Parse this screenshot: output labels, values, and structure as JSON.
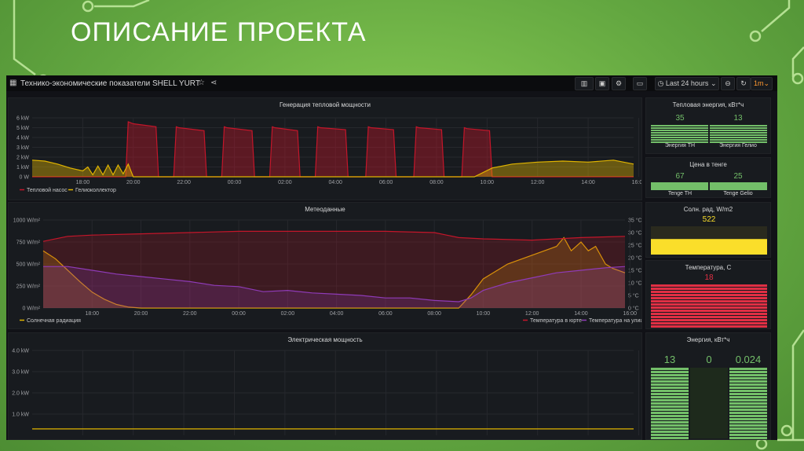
{
  "slide": {
    "title": "ОПИСАНИЕ ПРОЕКТА"
  },
  "dashboard": {
    "title": "Технико-экономические показатели SHELL YURT",
    "time_range": "Last 24 hours",
    "refresh": "1m"
  },
  "panels": {
    "heat_energy": {
      "title": "Тепловая энергия, кВт*ч",
      "values": [
        "35",
        "13"
      ],
      "labels": [
        "Энергия ТН",
        "Энергия Гелио"
      ],
      "color": "#73bf69"
    },
    "price": {
      "title": "Цена в тенге",
      "values": [
        "67",
        "25"
      ],
      "labels": [
        "Tenge TH",
        "Tenge Gelio"
      ],
      "color": "#73bf69"
    },
    "solar": {
      "title": "Солн. рад, W/m2",
      "value": "522",
      "level": 0.55,
      "color": "#fade2a"
    },
    "temperature": {
      "title": "Температура, С",
      "value": "18",
      "color": "#e02f44"
    },
    "energy": {
      "title": "Энергия, кВт*ч",
      "values": [
        "13",
        "0",
        "0.024"
      ],
      "color": "#73bf69"
    }
  },
  "chart_data": [
    {
      "type": "area",
      "title": "Генерация тепловой мощности",
      "y_ticks": [
        "0 W",
        "1 kW",
        "2 kW",
        "3 kW",
        "4 kW",
        "5 kW",
        "6 kW"
      ],
      "x_ticks": [
        "18:00",
        "20:00",
        "22:00",
        "00:00",
        "02:00",
        "04:00",
        "06:00",
        "08:00",
        "10:00",
        "12:00",
        "14:00",
        "16:00"
      ],
      "ylim": [
        0,
        6
      ],
      "unit": "kW",
      "series": [
        {
          "name": "Тепловой насос",
          "color": "#c4162a",
          "x": [
            0,
            3.7,
            3.8,
            4.0,
            4.9,
            5.0,
            5.6,
            5.7,
            5.8,
            6.8,
            6.9,
            7.5,
            7.6,
            7.7,
            8.7,
            8.8,
            9.4,
            9.5,
            9.6,
            10.5,
            10.6,
            11.2,
            11.3,
            11.4,
            12.4,
            12.5,
            13.2,
            13.3,
            13.4,
            14.3,
            14.4,
            15.1,
            15.2,
            15.3,
            16.2,
            16.3,
            17.0,
            17.1,
            17.2,
            18.1,
            18.2,
            23.8
          ],
          "y": [
            0,
            0,
            5.6,
            5.4,
            5.1,
            0,
            0,
            5.1,
            5.0,
            4.7,
            0,
            0,
            5.1,
            5.0,
            4.7,
            0,
            0,
            5.1,
            5.0,
            4.7,
            0,
            0,
            5.1,
            5.0,
            4.8,
            0,
            0,
            5.1,
            5.0,
            4.8,
            0,
            0,
            5.1,
            5.0,
            4.8,
            0,
            0,
            5.0,
            4.9,
            4.7,
            0,
            0
          ]
        },
        {
          "name": "Гелиоколлектор",
          "color": "#e0b400",
          "x": [
            0,
            0.5,
            1.0,
            1.5,
            2.0,
            2.2,
            2.4,
            2.6,
            2.8,
            3.0,
            3.2,
            3.4,
            3.6,
            3.8,
            4.0,
            17.5,
            18.2,
            19.0,
            20.0,
            21.0,
            22.0,
            23.0,
            23.8
          ],
          "y": [
            1.7,
            1.6,
            1.3,
            0.9,
            0.6,
            1.0,
            0.2,
            1.1,
            0.2,
            1.2,
            0.2,
            1.2,
            0.3,
            1.3,
            0,
            0,
            0.9,
            1.3,
            1.5,
            1.6,
            1.5,
            1.7,
            1.3
          ]
        }
      ]
    },
    {
      "type": "area",
      "title": "Метеоданные",
      "y_ticks": [
        "0 W/m²",
        "250 W/m²",
        "500 W/m²",
        "750 W/m²",
        "1000 W/m²"
      ],
      "y2_ticks": [
        "0 °C",
        "5 °C",
        "10 °C",
        "15 °C",
        "20 °C",
        "25 °C",
        "30 °C",
        "35 °C"
      ],
      "x_ticks": [
        "18:00",
        "20:00",
        "22:00",
        "00:00",
        "02:00",
        "04:00",
        "06:00",
        "08:00",
        "10:00",
        "12:00",
        "14:00",
        "16:00"
      ],
      "ylim": [
        0,
        1000
      ],
      "y2lim": [
        0,
        35
      ],
      "series": [
        {
          "name": "Солнечная радиация",
          "color": "#e0b400",
          "axis": "left",
          "x": [
            0,
            0.5,
            1.0,
            1.5,
            2.0,
            2.5,
            3.0,
            3.5,
            4.0,
            17.0,
            17.5,
            18.0,
            19.0,
            20.0,
            20.5,
            21.0,
            21.3,
            21.6,
            22.0,
            22.3,
            22.6,
            23.0,
            23.3,
            23.8
          ],
          "y": [
            650,
            560,
            430,
            300,
            180,
            100,
            40,
            10,
            0,
            0,
            150,
            330,
            500,
            600,
            650,
            700,
            800,
            650,
            750,
            650,
            700,
            500,
            450,
            400
          ]
        },
        {
          "name": "Температура в юрте",
          "color": "#c4162a",
          "axis": "right",
          "x": [
            0,
            1.0,
            2.0,
            4.0,
            6.0,
            8.0,
            10.0,
            12.0,
            14.0,
            16.0,
            16.5,
            17.0,
            18.0,
            20.0,
            22.0,
            23.8
          ],
          "y": [
            26.5,
            28.5,
            29.0,
            29.5,
            30.0,
            30.5,
            30.5,
            30.5,
            30.5,
            30.0,
            29.0,
            28.0,
            27.5,
            27.0,
            28.0,
            28.5
          ]
        },
        {
          "name": "Температура на улице",
          "color": "#8f3bb8",
          "axis": "right",
          "x": [
            0,
            1.0,
            2.0,
            3.0,
            4.0,
            5.0,
            6.0,
            7.0,
            8.0,
            9.0,
            10.0,
            11.0,
            12.0,
            13.0,
            14.0,
            15.0,
            16.0,
            17.0,
            17.5,
            18.0,
            19.0,
            20.0,
            21.0,
            22.0,
            23.0,
            23.8
          ],
          "y": [
            16.5,
            16.5,
            15.0,
            13.5,
            12.5,
            11.5,
            10.5,
            9.0,
            8.5,
            6.5,
            7.0,
            6.0,
            5.5,
            5.0,
            4.0,
            4.0,
            3.0,
            2.5,
            4.0,
            7.0,
            10.0,
            12.0,
            14.0,
            15.0,
            16.0,
            16.5
          ]
        }
      ]
    },
    {
      "type": "line",
      "title": "Электрическая мощность",
      "y_ticks": [
        "1.0 kW",
        "2.0 kW",
        "3.0 kW",
        "4.0 kW"
      ],
      "ylim": [
        0,
        4
      ],
      "series": [
        {
          "color": "#e0b400",
          "x": [
            0,
            23.8
          ],
          "y": [
            0.3,
            0.3
          ]
        }
      ]
    }
  ]
}
